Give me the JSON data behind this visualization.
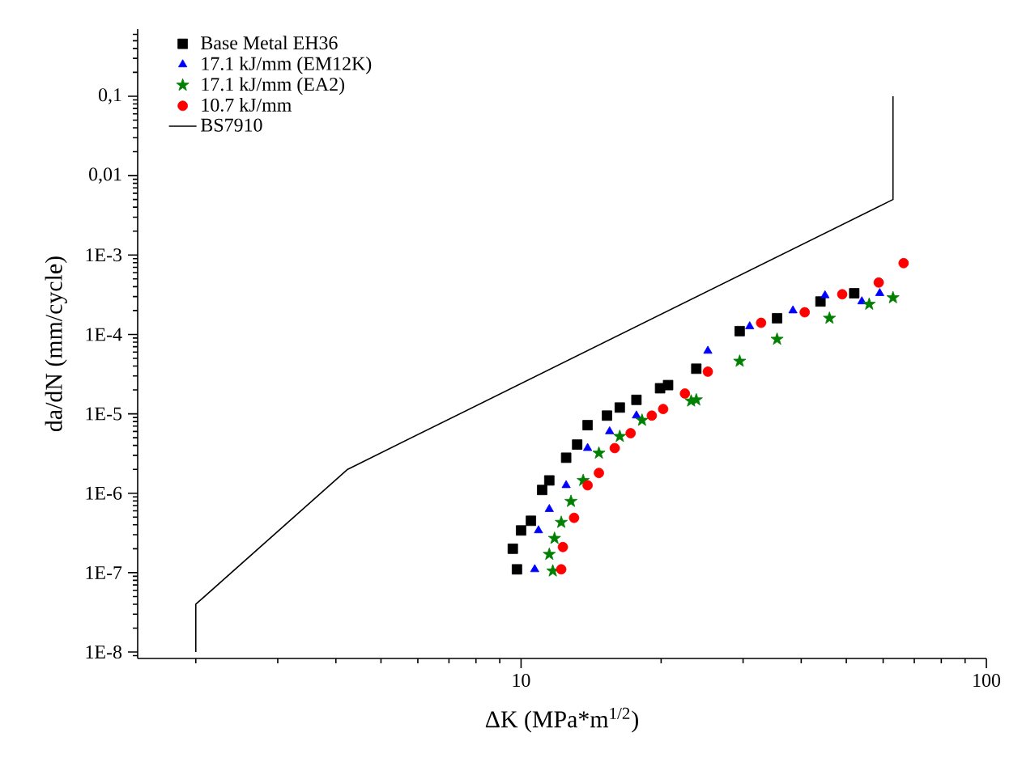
{
  "chart_data": {
    "type": "scatter",
    "xlabel": "ΔK (MPa*m$^{1/2}$)",
    "ylabel": "da/dN (mm/cycle)",
    "log": "xy",
    "xlim": [
      1.5,
      100
    ],
    "ylim": [
      8.3e-09,
      0.7
    ],
    "xticks": [
      10,
      100
    ],
    "yticks": [
      {
        "value": 1e-08,
        "label": "1E-8"
      },
      {
        "value": 1e-07,
        "label": "1E-7"
      },
      {
        "value": 1e-06,
        "label": "1E-6"
      },
      {
        "value": 1e-05,
        "label": "1E-5"
      },
      {
        "value": 0.0001,
        "label": "1E-4"
      },
      {
        "value": 0.001,
        "label": "1E-3"
      },
      {
        "value": 0.01,
        "label": "0,01"
      },
      {
        "value": 0.1,
        "label": "0,1"
      }
    ],
    "grid": false,
    "legend": "top left",
    "series": [
      {
        "name": "Base Metal EH36",
        "color": "#000000",
        "marker": "square",
        "x": [
          9.8,
          9.6,
          10,
          10.5,
          11.1,
          11.5,
          12.5,
          13.2,
          13.9,
          15.3,
          16.3,
          17.7,
          19.9,
          20.7,
          23.8,
          29.5,
          35.5,
          44,
          52
        ],
        "values": [
          1.1e-07,
          2e-07,
          3.4e-07,
          4.5e-07,
          1.1e-06,
          1.45e-06,
          2.8e-06,
          4.1e-06,
          7.2e-06,
          9.5e-06,
          1.2e-05,
          1.5e-05,
          2.1e-05,
          2.3e-05,
          3.7e-05,
          0.00011,
          0.00016,
          0.00026,
          0.00033
        ]
      },
      {
        "name": "17.1 kJ/mm (EM12K)",
        "color": "#0000ff",
        "marker": "triangle",
        "x": [
          10.7,
          10.9,
          11.5,
          12.5,
          13.9,
          15.5,
          17.7,
          25.2,
          31,
          38.4,
          45,
          54,
          59
        ],
        "values": [
          1.1e-07,
          3.4e-07,
          6.3e-07,
          1.26e-06,
          3.7e-06,
          6e-06,
          9.5e-06,
          6.2e-05,
          0.000126,
          0.0002,
          0.00031,
          0.00026,
          0.00033
        ]
      },
      {
        "name": "17.1 kJ/mm (EA2)",
        "color": "#008000",
        "marker": "star",
        "x": [
          11.7,
          11.5,
          11.8,
          12.2,
          12.8,
          13.6,
          14.7,
          16.3,
          18.2,
          23.2,
          23.8,
          29.5,
          35.5,
          46,
          56,
          63
        ],
        "values": [
          1.05e-07,
          1.7e-07,
          2.7e-07,
          4.3e-07,
          7.9e-07,
          1.45e-06,
          3.2e-06,
          5.2e-06,
          8.3e-06,
          1.45e-05,
          1.5e-05,
          4.6e-05,
          8.7e-05,
          0.00016,
          0.00024,
          0.00029
        ]
      },
      {
        "name": "10.7 kJ/mm",
        "color": "#ff0000",
        "marker": "circle",
        "x": [
          12.2,
          12.3,
          13,
          13.9,
          14.7,
          15.9,
          17.2,
          19.1,
          20.2,
          22.5,
          25.2,
          32.8,
          40.7,
          49,
          58.7,
          66.4
        ],
        "values": [
          1.1e-07,
          2.1e-07,
          4.9e-07,
          1.26e-06,
          1.8e-06,
          3.7e-06,
          5.7e-06,
          9.5e-06,
          1.15e-05,
          1.8e-05,
          3.4e-05,
          0.00014,
          0.00019,
          0.00032,
          0.00045,
          0.00079
        ]
      },
      {
        "name": "BS7910",
        "type": "line",
        "color": "#000000",
        "marker": "none",
        "line_style": "solid",
        "x": [
          2,
          2,
          4.24,
          63,
          63
        ],
        "values": [
          1e-08,
          4e-08,
          2e-06,
          0.005,
          0.1
        ]
      }
    ]
  }
}
